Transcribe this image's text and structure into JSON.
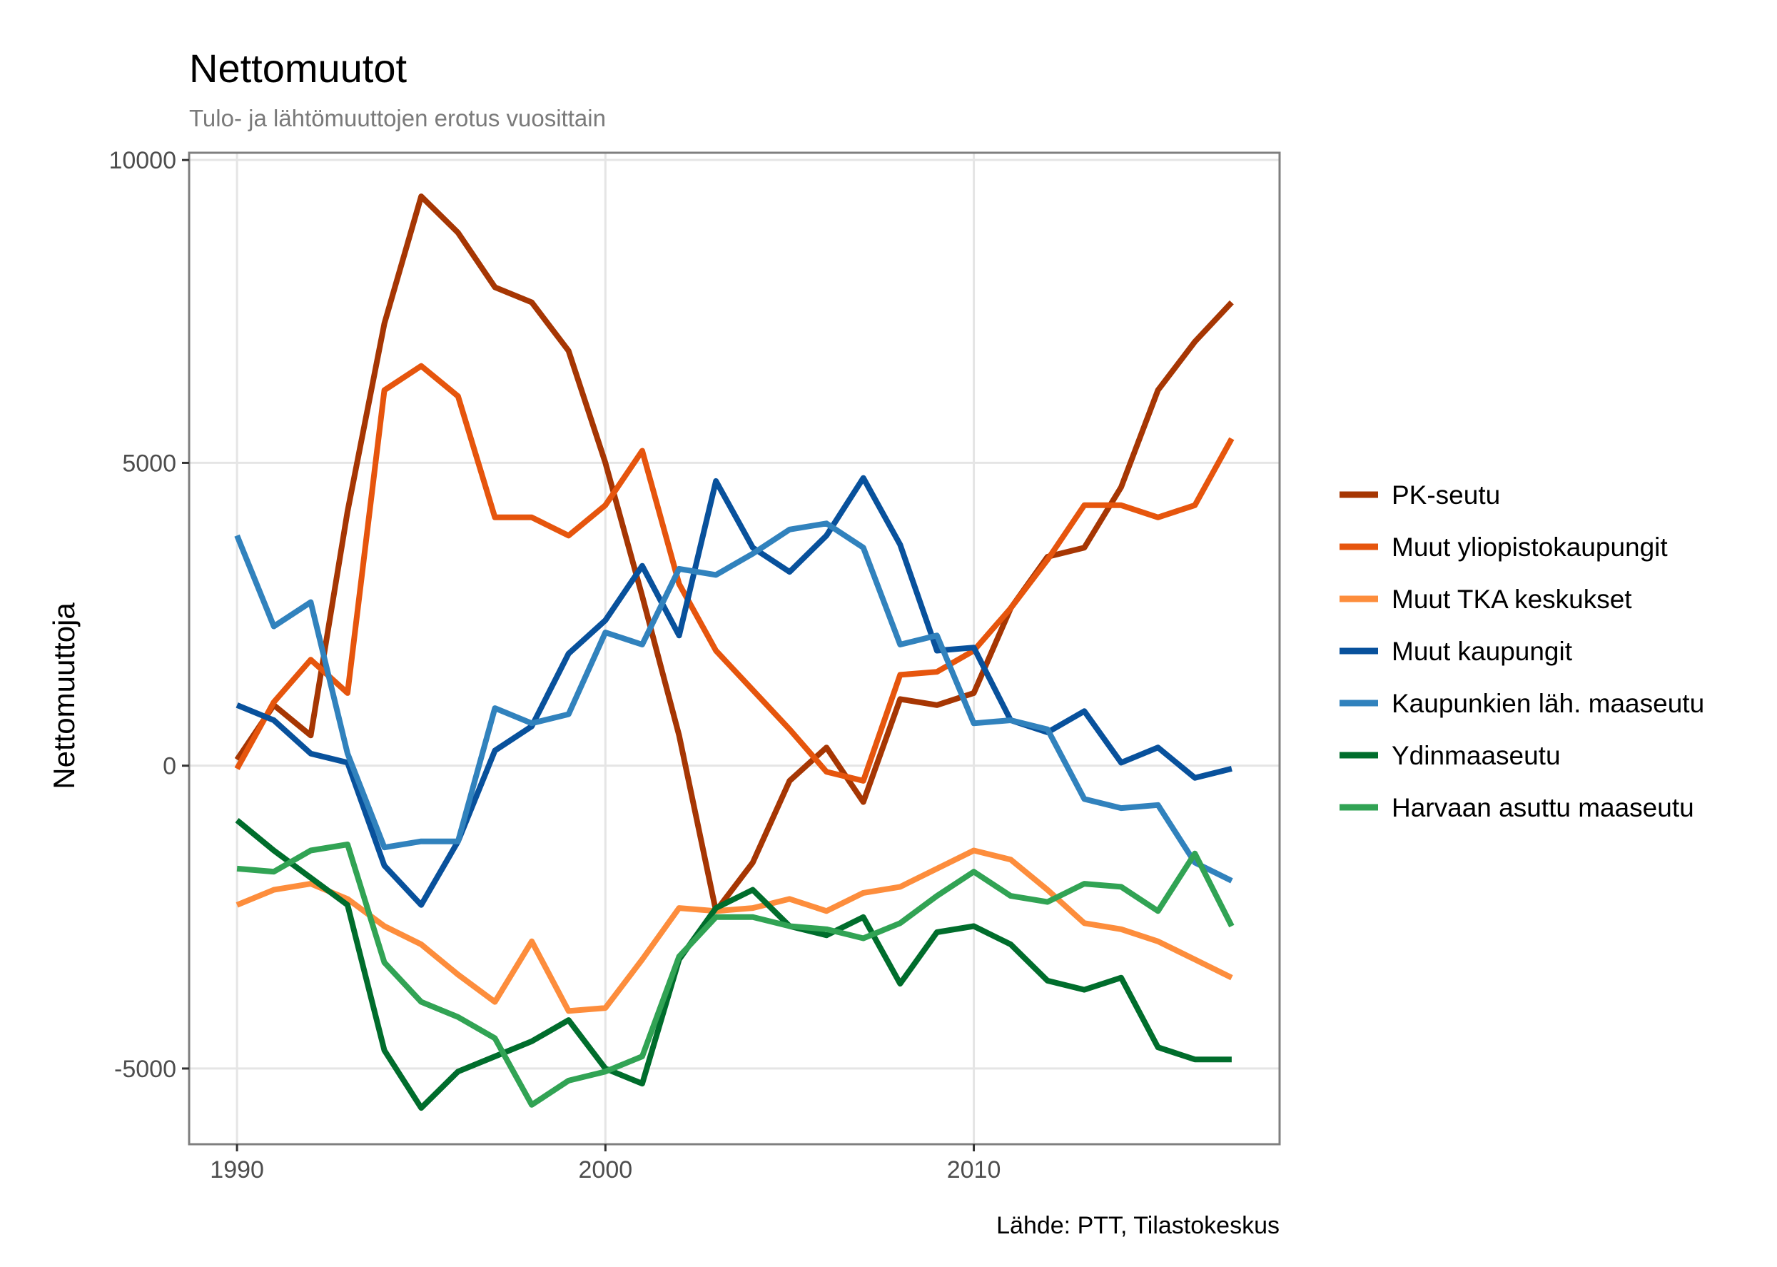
{
  "chart_data": {
    "type": "line",
    "title": "Nettomuutot",
    "subtitle": "Tulo- ja lähtömuuttojen erotus vuosittain",
    "xlabel": "",
    "ylabel": "Nettomuuttoja",
    "caption": "Lähde: PTT, Tilastokeskus",
    "xlim": [
      1988.7,
      2018.3
    ],
    "ylim": [
      -6250,
      10120
    ],
    "x_ticks": [
      1990,
      2000,
      2010
    ],
    "x_tick_labels": [
      "1990",
      "2000",
      "2010"
    ],
    "y_ticks": [
      10000,
      5000,
      0,
      -5000
    ],
    "y_tick_labels": [
      "10000",
      "5000",
      "0",
      "-5000"
    ],
    "grid": true,
    "legend_position": "right",
    "x": [
      1990,
      1991,
      1992,
      1993,
      1994,
      1995,
      1996,
      1997,
      1998,
      1999,
      2000,
      2001,
      2002,
      2003,
      2004,
      2005,
      2006,
      2007,
      2008,
      2009,
      2010,
      2011,
      2012,
      2013,
      2014,
      2015,
      2016,
      2017
    ],
    "series": [
      {
        "name": "PK-seutu",
        "color": "#a63603",
        "values": [
          100,
          1000,
          500,
          4200,
          7300,
          9400,
          8800,
          7900,
          7650,
          6850,
          5000,
          2800,
          500,
          -2400,
          -1600,
          -250,
          300,
          -600,
          1100,
          1000,
          1200,
          2600,
          3450,
          3600,
          4600,
          6200,
          7000,
          7650
        ]
      },
      {
        "name": "Muut yliopistokaupungit",
        "color": "#e6550d",
        "values": [
          -50,
          1050,
          1750,
          1200,
          6200,
          6600,
          6100,
          4100,
          4100,
          3800,
          4300,
          5200,
          3000,
          1900,
          1250,
          600,
          -100,
          -250,
          1500,
          1550,
          1900,
          2600,
          3400,
          4300,
          4300,
          4100,
          4300,
          5400
        ]
      },
      {
        "name": "Muut TKA keskukset",
        "color": "#fd8d3c",
        "values": [
          -2300,
          -2050,
          -1950,
          -2200,
          -2650,
          -2950,
          -3450,
          -3900,
          -2900,
          -4050,
          -4000,
          -3200,
          -2350,
          -2400,
          -2350,
          -2200,
          -2400,
          -2100,
          -2000,
          -1700,
          -1400,
          -1550,
          -2050,
          -2600,
          -2700,
          -2900,
          -3200,
          -3500
        ]
      },
      {
        "name": "Muut kaupungit",
        "color": "#08519c",
        "values": [
          1000,
          750,
          200,
          50,
          -1650,
          -2300,
          -1250,
          250,
          650,
          1850,
          2400,
          3300,
          2150,
          4700,
          3600,
          3200,
          3800,
          4750,
          3650,
          1900,
          1950,
          750,
          550,
          900,
          50,
          300,
          -200,
          -50
        ]
      },
      {
        "name": "Kaupunkien läh. maaseutu",
        "color": "#3182bd",
        "values": [
          3800,
          2300,
          2700,
          200,
          -1350,
          -1250,
          -1250,
          950,
          700,
          850,
          2200,
          2000,
          3250,
          3150,
          3500,
          3900,
          4000,
          3600,
          2000,
          2150,
          700,
          750,
          600,
          -550,
          -700,
          -650,
          -1600,
          -1900
        ]
      },
      {
        "name": "Ydinmaaseutu",
        "color": "#006d2c",
        "values": [
          -900,
          -1400,
          -1850,
          -2300,
          -4700,
          -5650,
          -5050,
          -4800,
          -4550,
          -4200,
          -5000,
          -5250,
          -3200,
          -2350,
          -2050,
          -2650,
          -2800,
          -2500,
          -3600,
          -2750,
          -2650,
          -2950,
          -3550,
          -3700,
          -3500,
          -4650,
          -4850,
          -4850
        ]
      },
      {
        "name": "Harvaan asuttu maaseutu",
        "color": "#31a354",
        "values": [
          -1700,
          -1750,
          -1400,
          -1300,
          -3250,
          -3900,
          -4150,
          -4500,
          -5600,
          -5200,
          -5050,
          -4800,
          -3150,
          -2500,
          -2500,
          -2650,
          -2700,
          -2850,
          -2600,
          -2150,
          -1750,
          -2150,
          -2250,
          -1950,
          -2000,
          -2400,
          -1450,
          -2650
        ]
      }
    ]
  }
}
